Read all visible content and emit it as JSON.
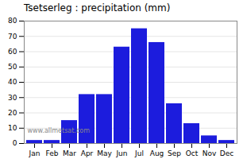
{
  "chart_data": {
    "type": "bar",
    "title": "Tsetserleg : precipitation (mm)",
    "categories": [
      "Jan",
      "Feb",
      "Mar",
      "Apr",
      "May",
      "Jun",
      "Jul",
      "Aug",
      "Sep",
      "Oct",
      "Nov",
      "Dec"
    ],
    "values": [
      2,
      2,
      15,
      32,
      32,
      63,
      75,
      66,
      26,
      13,
      5,
      2
    ],
    "color": "#1c1cdd",
    "ylim": [
      0,
      80
    ],
    "yticks": [
      0,
      10,
      20,
      30,
      40,
      50,
      60,
      70,
      80
    ],
    "grid": true,
    "annotations": [
      "www.allmetsat.com"
    ]
  }
}
